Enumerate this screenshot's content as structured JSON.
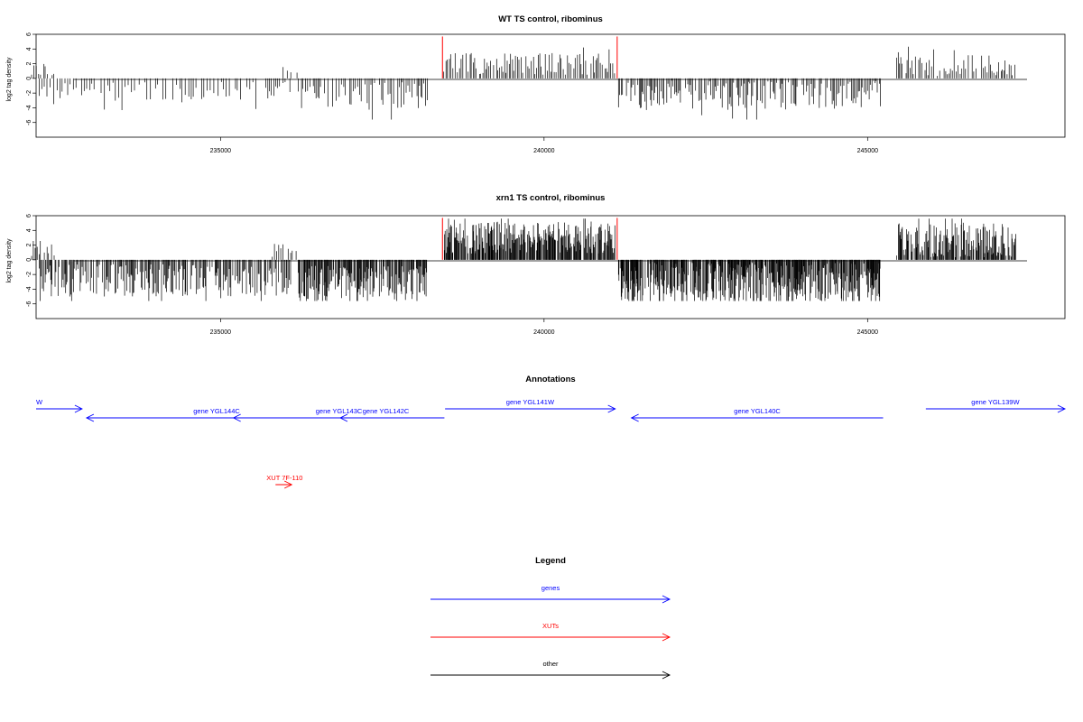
{
  "chart_data": [
    {
      "type": "bar",
      "title": "WT TS control, ribominus",
      "xlabel": "",
      "ylabel": "log2 tag density",
      "xlim": [
        232150,
        248050
      ],
      "ylim": [
        -8,
        6
      ],
      "x_ticks": [
        235000,
        240000,
        245000
      ],
      "x_tick_labels": [
        "235000",
        "240000",
        "245000"
      ],
      "y_ticks": [
        6,
        4,
        2,
        0,
        -2,
        -4,
        -6
      ],
      "y_tick_labels": [
        "6",
        "4",
        "2",
        "0",
        "-2",
        "-4",
        "-6"
      ],
      "grid": false,
      "highlight_x": [
        238430,
        241130
      ],
      "highlight_value": 5.7,
      "highlight_color": "#ff0000",
      "bar_color": "#000000",
      "series": [
        {
          "name": "",
          "x_range": [
            232080,
            232450
          ],
          "strand": "+",
          "mean": 1.2,
          "amp": 1.0,
          "step": 30
        },
        {
          "name": "",
          "x_range": [
            232200,
            236100
          ],
          "strand": "-",
          "mean": 1.8,
          "amp": 1.3,
          "step": 40
        },
        {
          "name": "",
          "x_range": [
            235900,
            236200
          ],
          "strand": "+",
          "mean": 1.1,
          "amp": 0.7,
          "step": 70
        },
        {
          "name": "",
          "x_range": [
            236200,
            238200
          ],
          "strand": "-",
          "mean": 2.3,
          "amp": 1.8,
          "step": 28
        },
        {
          "name": "",
          "x_range": [
            238450,
            241100
          ],
          "strand": "+",
          "mean": 2.0,
          "amp": 1.5,
          "step": 26
        },
        {
          "name": "",
          "x_range": [
            241150,
            245200
          ],
          "strand": "-",
          "mean": 2.3,
          "amp": 2.0,
          "step": 20
        },
        {
          "name": "",
          "x_range": [
            245450,
            247300
          ],
          "strand": "+",
          "mean": 1.8,
          "amp": 1.5,
          "step": 26
        }
      ]
    },
    {
      "type": "bar",
      "title": "xrn1 TS control, ribominus",
      "xlabel": "",
      "ylabel": "log2 tag density",
      "xlim": [
        232150,
        248050
      ],
      "ylim": [
        -8,
        6
      ],
      "x_ticks": [
        235000,
        240000,
        245000
      ],
      "x_tick_labels": [
        "235000",
        "240000",
        "245000"
      ],
      "y_ticks": [
        6,
        4,
        2,
        0,
        -2,
        -4,
        -6
      ],
      "y_tick_labels": [
        "6",
        "4",
        "2",
        "0",
        "-2",
        "-4",
        "-6"
      ],
      "grid": false,
      "highlight_x": [
        238430,
        241130
      ],
      "highlight_value": 5.7,
      "highlight_color": "#ff0000",
      "bar_color": "#000000",
      "series": [
        {
          "name": "",
          "x_range": [
            232080,
            232450
          ],
          "strand": "+",
          "mean": 1.6,
          "amp": 1.2,
          "step": 25
        },
        {
          "name": "",
          "x_range": [
            232200,
            236100
          ],
          "strand": "-",
          "mean": 2.8,
          "amp": 2.2,
          "step": 15
        },
        {
          "name": "",
          "x_range": [
            235800,
            236200
          ],
          "strand": "+",
          "mean": 1.3,
          "amp": 1.0,
          "step": 40
        },
        {
          "name": "",
          "x_range": [
            236200,
            238200
          ],
          "strand": "-",
          "mean": 3.3,
          "amp": 2.5,
          "step": 10
        },
        {
          "name": "",
          "x_range": [
            238450,
            241100
          ],
          "strand": "+",
          "mean": 3.0,
          "amp": 2.2,
          "step": 9
        },
        {
          "name": "",
          "x_range": [
            241150,
            245200
          ],
          "strand": "-",
          "mean": 3.2,
          "amp": 2.8,
          "step": 8
        },
        {
          "name": "",
          "x_range": [
            245450,
            247300
          ],
          "strand": "+",
          "mean": 2.7,
          "amp": 2.4,
          "step": 10
        }
      ]
    }
  ],
  "annotations": {
    "title": "Annotations",
    "features": [
      {
        "label": "",
        "partial_label": "W",
        "x_start": 232150,
        "x_end": 232860,
        "strand": "+",
        "row": 0,
        "color": "#0000ff"
      },
      {
        "label": "gene YGL144C",
        "x_start": 232930,
        "x_end": 236950,
        "strand": "-",
        "row": 1,
        "color": "#0000ff"
      },
      {
        "label": "gene YGL143C",
        "x_start": 235200,
        "x_end": 238460,
        "strand": "-",
        "row": 1,
        "color": "#0000ff"
      },
      {
        "label": "gene YGL142C",
        "x_start": 236850,
        "x_end": 238260,
        "strand": "-",
        "row": 1,
        "color": "#0000ff"
      },
      {
        "label": "gene YGL141W",
        "x_start": 238470,
        "x_end": 241100,
        "strand": "+",
        "row": 0,
        "color": "#0000ff"
      },
      {
        "label": "gene YGL140C",
        "x_start": 241350,
        "x_end": 245240,
        "strand": "-",
        "row": 1,
        "color": "#0000ff"
      },
      {
        "label": "gene YGL139W",
        "x_start": 245900,
        "x_end": 248050,
        "strand": "+",
        "row": 0,
        "color": "#0000ff"
      },
      {
        "label": "XUT 7F-110",
        "x_start": 235850,
        "x_end": 236100,
        "strand": "+",
        "row": 2,
        "color": "#ff0000"
      }
    ]
  },
  "legend": {
    "title": "Legend",
    "items": [
      {
        "label": "genes",
        "color": "#0000ff"
      },
      {
        "label": "XUTs",
        "color": "#ff0000"
      },
      {
        "label": "other",
        "color": "#000000"
      }
    ]
  }
}
